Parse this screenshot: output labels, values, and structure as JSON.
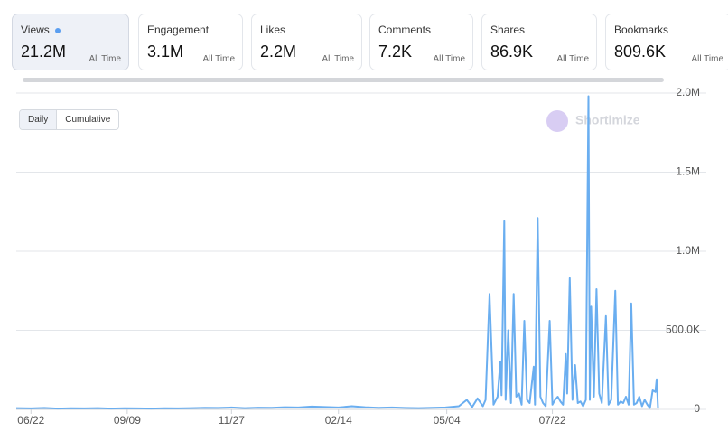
{
  "metrics": [
    {
      "label": "Views",
      "value": "21.2M",
      "period": "All Time"
    },
    {
      "label": "Engagement",
      "value": "3.1M",
      "period": "All Time"
    },
    {
      "label": "Likes",
      "value": "2.2M",
      "period": "All Time"
    },
    {
      "label": "Comments",
      "value": "7.2K",
      "period": "All Time"
    },
    {
      "label": "Shares",
      "value": "86.9K",
      "period": "All Time"
    },
    {
      "label": "Bookmarks",
      "value": "809.6K",
      "period": "All Time"
    }
  ],
  "toggle": [
    "Daily",
    "Cumulative"
  ],
  "watermark": "Shortimize",
  "chart_data": {
    "type": "line",
    "color": "#6aaef0",
    "grid": true,
    "x": [
      -11,
      0,
      10,
      20,
      30,
      40,
      50,
      60,
      70,
      80,
      90,
      100,
      110,
      120,
      130,
      140,
      150,
      160,
      170,
      180,
      190,
      200,
      210,
      220,
      230,
      240,
      250,
      260,
      270,
      280,
      290,
      300,
      310,
      320,
      326,
      330,
      334,
      338,
      340,
      343,
      346,
      349,
      351,
      352,
      354,
      355,
      357,
      359,
      361,
      363,
      365,
      367,
      369,
      371,
      373,
      376,
      377,
      379,
      381,
      383,
      385,
      388,
      390,
      392,
      394,
      396,
      398,
      400,
      401,
      403,
      405,
      407,
      409,
      411,
      413,
      415,
      417,
      418,
      419,
      421,
      423,
      425,
      427,
      430,
      432,
      434,
      437,
      439,
      441,
      443,
      445,
      447,
      449,
      451,
      453,
      455,
      457,
      459,
      461,
      463,
      465,
      467,
      468,
      469
    ],
    "values": [
      8000,
      6000,
      9000,
      5000,
      7000,
      6000,
      8000,
      5000,
      7000,
      6000,
      5000,
      7000,
      6000,
      8000,
      10000,
      9000,
      12000,
      8000,
      11000,
      10000,
      14000,
      12000,
      18000,
      15000,
      12000,
      20000,
      14000,
      10000,
      12000,
      9000,
      8000,
      10000,
      12000,
      20000,
      60000,
      15000,
      70000,
      20000,
      60000,
      730000,
      30000,
      80000,
      300000,
      90000,
      1190000,
      60000,
      500000,
      40000,
      730000,
      80000,
      100000,
      30000,
      560000,
      60000,
      40000,
      270000,
      30000,
      1210000,
      80000,
      40000,
      20000,
      560000,
      30000,
      60000,
      80000,
      50000,
      30000,
      350000,
      100000,
      830000,
      60000,
      280000,
      40000,
      50000,
      20000,
      60000,
      1980000,
      60000,
      650000,
      80000,
      760000,
      100000,
      40000,
      590000,
      30000,
      60000,
      750000,
      30000,
      50000,
      40000,
      80000,
      30000,
      670000,
      30000,
      40000,
      80000,
      20000,
      60000,
      30000,
      10000,
      120000,
      110000,
      190000,
      10000
    ],
    "xlim": [
      -11,
      470
    ],
    "xticks": [
      {
        "value": 0,
        "label": "06/22"
      },
      {
        "value": 72,
        "label": "09/09"
      },
      {
        "value": 150,
        "label": "11/27"
      },
      {
        "value": 230,
        "label": "02/14"
      },
      {
        "value": 311,
        "label": "05/04"
      },
      {
        "value": 390,
        "label": "07/22"
      }
    ],
    "ylim": [
      0,
      2000000
    ],
    "yticks": [
      0,
      {
        "value": 500000,
        "label": "500.0K"
      },
      {
        "value": 1000000,
        "label": "1.0M"
      },
      {
        "value": 1500000,
        "label": "1.5M"
      },
      {
        "value": 2000000,
        "label": "2.0M"
      }
    ]
  }
}
